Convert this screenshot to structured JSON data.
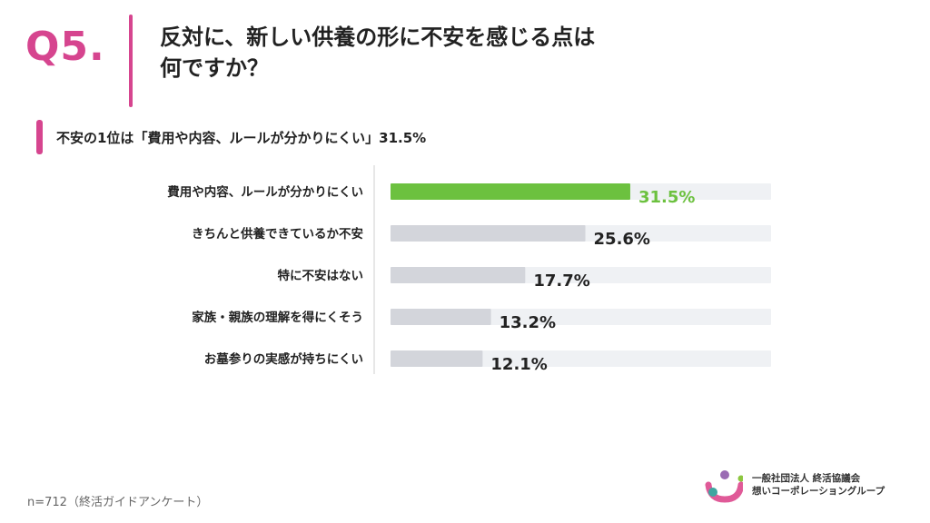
{
  "question": {
    "number": "Q5.",
    "title_line1": "反対に、新しい供養の形に不安を感じる点は",
    "title_line2": "何ですか？"
  },
  "summary": "不安の1位は「費用や内容、ルールが分かりにくい」31.5%",
  "chart_data": {
    "type": "bar",
    "orientation": "horizontal",
    "categories": [
      "費用や内容、ルールが分かりにくい",
      "きちんと供養できているか不安",
      "特に不安はない",
      "家族・親族の理解を得にくそう",
      "お墓参りの実感が持ちにくい"
    ],
    "values": [
      31.5,
      25.6,
      17.7,
      13.2,
      12.1
    ],
    "value_labels": [
      "31.5%",
      "25.6%",
      "17.7%",
      "13.2%",
      "12.1%"
    ],
    "unit": "%",
    "xlim": [
      0,
      50
    ],
    "highlight_index": 0,
    "colors": {
      "highlight": "#6cc13f",
      "bar": "#d3d5db",
      "track": "#eff1f4",
      "highlight_label": "#6cc13f",
      "label": "#222222",
      "axis": "#cfcfcf"
    },
    "grid": false,
    "legend": "none"
  },
  "footnote": "n=712（終活ガイドアンケート）",
  "logo": {
    "line1": "一般社団法人 終活協議会",
    "line2": "想いコーポレーショングループ",
    "colors": [
      "#9a6bb3",
      "#e05a98",
      "#3ea6a0",
      "#8cc63f"
    ]
  }
}
